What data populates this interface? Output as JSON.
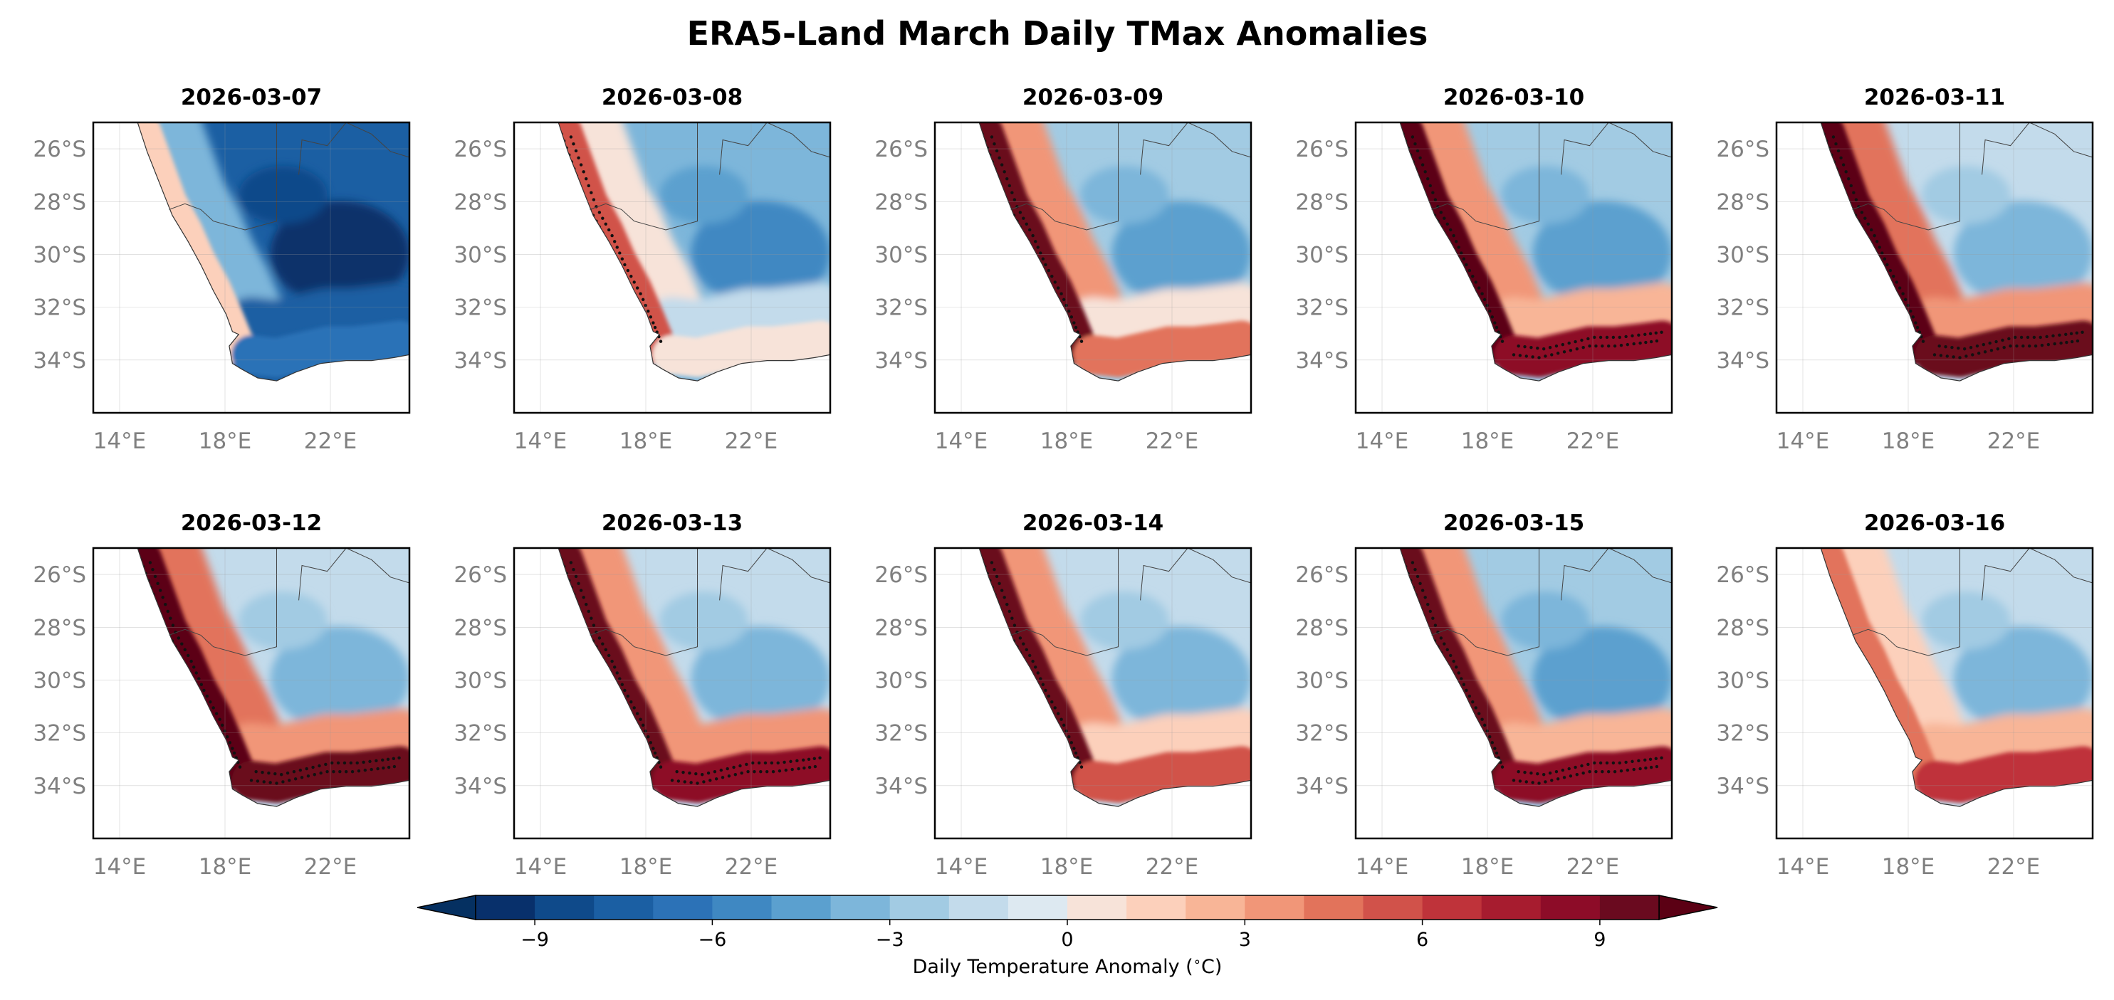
{
  "chart_data": {
    "type": "heatmap",
    "title": "ERA5-Land March Daily TMax Anomalies",
    "grid": true,
    "region": {
      "lon_range": [
        13,
        25
      ],
      "lat_range": [
        -36,
        -25
      ]
    },
    "x_ticks": [
      "14°E",
      "18°E",
      "22°E"
    ],
    "y_ticks": [
      "26°S",
      "28°S",
      "30°S",
      "32°S",
      "34°S"
    ],
    "x_tick_values": [
      14,
      18,
      22
    ],
    "y_tick_values": [
      -26,
      -28,
      -30,
      -32,
      -34
    ],
    "stippling": "dots mark extreme anomalies",
    "panels": [
      {
        "date": "2026-03-07",
        "west_coast_anomaly": 1,
        "south_coast_anomaly": -7,
        "interior_anomaly": -8,
        "stippled": false
      },
      {
        "date": "2026-03-08",
        "west_coast_anomaly": 5,
        "south_coast_anomaly": 0,
        "interior_anomaly": -4,
        "stippled": true
      },
      {
        "date": "2026-03-09",
        "west_coast_anomaly": 9,
        "south_coast_anomaly": 4,
        "interior_anomaly": -3,
        "stippled": true
      },
      {
        "date": "2026-03-10",
        "west_coast_anomaly": 10,
        "south_coast_anomaly": 8,
        "interior_anomaly": -3,
        "stippled": true
      },
      {
        "date": "2026-03-11",
        "west_coast_anomaly": 10,
        "south_coast_anomaly": 9,
        "interior_anomaly": -2,
        "stippled": true
      },
      {
        "date": "2026-03-12",
        "west_coast_anomaly": 10,
        "south_coast_anomaly": 9,
        "interior_anomaly": -2,
        "stippled": true
      },
      {
        "date": "2026-03-13",
        "west_coast_anomaly": 9,
        "south_coast_anomaly": 8,
        "interior_anomaly": -2,
        "stippled": true
      },
      {
        "date": "2026-03-14",
        "west_coast_anomaly": 9,
        "south_coast_anomaly": 5,
        "interior_anomaly": -2,
        "stippled": true
      },
      {
        "date": "2026-03-15",
        "west_coast_anomaly": 9,
        "south_coast_anomaly": 8,
        "interior_anomaly": -3,
        "stippled": true
      },
      {
        "date": "2026-03-16",
        "west_coast_anomaly": 4,
        "south_coast_anomaly": 6,
        "interior_anomaly": -2,
        "stippled": false
      }
    ],
    "colorbar": {
      "label": "Daily Temperature Anomaly (",
      "label_unit": "C)",
      "label_degree": "∘",
      "vmin": -10,
      "vmax": 10,
      "step": 1,
      "extend": "both",
      "ticks": [
        -9,
        -6,
        -3,
        0,
        3,
        6,
        9
      ],
      "tick_labels": [
        "−9",
        "−6",
        "−3",
        "0",
        "3",
        "6",
        "9"
      ],
      "colors": [
        "#08306b",
        "#0f4a8a",
        "#1b5fa3",
        "#2c72b7",
        "#3f88c2",
        "#5ba0cf",
        "#7db6da",
        "#a2cbe3",
        "#c3dbeb",
        "#dde9f1",
        "#f7e3d9",
        "#fcd0bb",
        "#f8b597",
        "#f19678",
        "#e2735b",
        "#d1524a",
        "#bf333a",
        "#a71c2f",
        "#8d0c28",
        "#6a0a1f"
      ],
      "under_color": "#053061",
      "over_color": "#5b0014"
    }
  }
}
